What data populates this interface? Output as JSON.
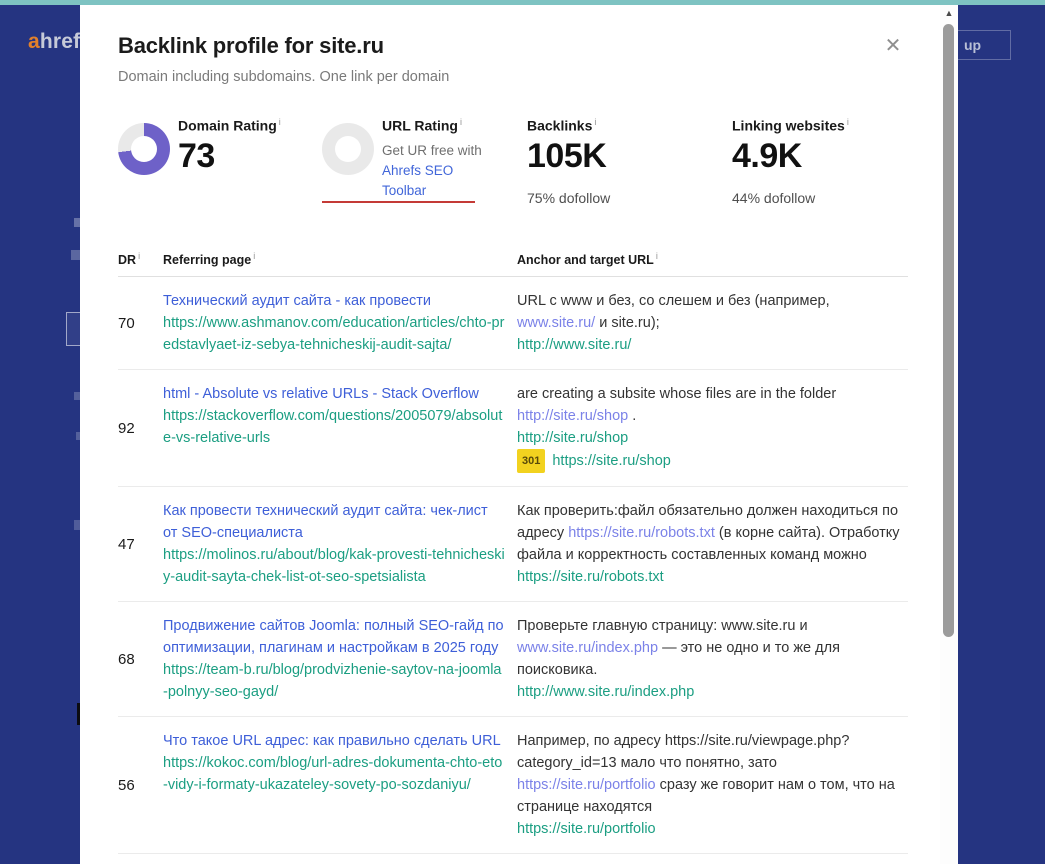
{
  "colors": {
    "background_navy": "#253481",
    "top_strip_teal": "#7ec3c2",
    "donut_purple": "#6e61c8",
    "donut_gray": "#e9e9e9",
    "title_link_blue": "#3e5fd8",
    "inline_link_blue": "#7b82e8",
    "target_url_teal": "#1b9e82",
    "badge_yellow": "#f2d21f",
    "red_underline": "#c43a36",
    "logo_orange": "#e2802b"
  },
  "icons": {
    "close": "✕",
    "info": "i",
    "scroll_up": "▲"
  },
  "nav": {
    "logo_a": "a",
    "logo_rest": "href",
    "signup_label": "up"
  },
  "modal": {
    "title": "Backlink profile for site.ru",
    "subtitle": "Domain including subdomains. One link per domain"
  },
  "stats": {
    "domain_rating": {
      "label": "Domain Rating",
      "value": "73",
      "donut_percent": 73
    },
    "url_rating": {
      "label": "URL Rating",
      "promo_text": "Get UR free with",
      "promo_link": "Ahrefs SEO Toolbar",
      "donut_percent": 0
    },
    "backlinks": {
      "label": "Backlinks",
      "value": "105K",
      "sub": "75% dofollow"
    },
    "linking_websites": {
      "label": "Linking websites",
      "value": "4.9K",
      "sub": "44% dofollow"
    }
  },
  "table": {
    "headers": {
      "dr": "DR",
      "referring_page": "Referring page",
      "anchor": "Anchor and target URL"
    },
    "rows": [
      {
        "dr": "70",
        "ref_title": "Технический аудит сайта - как провести",
        "ref_url": "https://www.ashmanov.com/education/articles/chto-predstavlyaet-iz-sebya-tehnicheskij-audit-sajta/",
        "anchor": [
          {
            "type": "text",
            "text": "URL с www и без, со слешем и без (например, "
          },
          {
            "type": "link",
            "text": "www.site.ru/"
          },
          {
            "type": "text",
            "text": " и site.ru);"
          },
          {
            "type": "url",
            "text": "http://www.site.ru/",
            "block": true
          }
        ]
      },
      {
        "dr": "92",
        "ref_title": "html - Absolute vs relative URLs - Stack Overflow",
        "ref_url": "https://stackoverflow.com/questions/2005079/absolute-vs-relative-urls",
        "anchor": [
          {
            "type": "text",
            "text": "are creating a subsite whose files are in the folder "
          },
          {
            "type": "link",
            "text": "http://site.ru/shop"
          },
          {
            "type": "text",
            "text": " ."
          },
          {
            "type": "url",
            "text": "http://site.ru/shop",
            "block": true
          },
          {
            "type": "badge",
            "text": "301",
            "block": true
          },
          {
            "type": "url",
            "text": "https://site.ru/shop"
          }
        ]
      },
      {
        "dr": "47",
        "ref_title": "Как провести технический аудит сайта: чек-лист от SEO-специалиста",
        "ref_url": "https://molinos.ru/about/blog/kak-provesti-tehnicheskiy-audit-sayta-chek-list-ot-seo-spetsialista",
        "anchor": [
          {
            "type": "text",
            "text": "Как проверить:файл обязательно должен находиться по адресу "
          },
          {
            "type": "link",
            "text": "https://site.ru/robots.txt"
          },
          {
            "type": "text",
            "text": " (в корне сайта). Отработку файла и корректность составленных команд можно"
          },
          {
            "type": "url",
            "text": "https://site.ru/robots.txt",
            "block": true
          }
        ]
      },
      {
        "dr": "68",
        "ref_title": "Продвижение сайтов Joomla: полный SEO-гайд по оптимизации, плагинам и настройкам в 2025 году",
        "ref_url": "https://team-b.ru/blog/prodvizhenie-saytov-na-joomla-polnyy-seo-gayd/",
        "anchor": [
          {
            "type": "text",
            "text": "Проверьте главную страницу: www.site.ru и "
          },
          {
            "type": "link",
            "text": "www.site.ru/index.php"
          },
          {
            "type": "text",
            "text": " — это не одно и то же для поисковика."
          },
          {
            "type": "url",
            "text": "http://www.site.ru/index.php",
            "block": true
          }
        ]
      },
      {
        "dr": "56",
        "ref_title": "Что такое URL адрес: как правильно сделать URL",
        "ref_url": "https://kokoc.com/blog/url-adres-dokumenta-chto-eto-vidy-i-formaty-ukazateley-sovety-po-sozdaniyu/",
        "anchor": [
          {
            "type": "text",
            "text": "Например, по адресу https://site.ru/viewpage.php?category_id=13 мало что понятно, зато "
          },
          {
            "type": "link",
            "text": "https://site.ru/portfolio"
          },
          {
            "type": "text",
            "text": " сразу же говорит нам о том, что на странице находятся"
          },
          {
            "type": "url",
            "text": "https://site.ru/portfolio",
            "block": true
          }
        ]
      }
    ]
  }
}
